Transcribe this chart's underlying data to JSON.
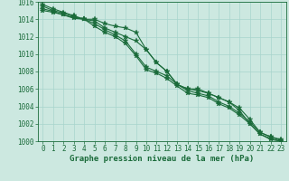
{
  "xlabel": "Graphe pression niveau de la mer (hPa)",
  "xlim": [
    -0.5,
    23.5
  ],
  "ylim": [
    1000,
    1016
  ],
  "yticks": [
    1000,
    1002,
    1004,
    1006,
    1008,
    1010,
    1012,
    1014,
    1016
  ],
  "xticks": [
    0,
    1,
    2,
    3,
    4,
    5,
    6,
    7,
    8,
    9,
    10,
    11,
    12,
    13,
    14,
    15,
    16,
    17,
    18,
    19,
    20,
    21,
    22,
    23
  ],
  "background_color": "#cce8e0",
  "grid_color": "#a8d4cc",
  "line_color": "#1a6b3a",
  "spine_color": "#1a6b3a",
  "lines": [
    [
      1015.0,
      1014.8,
      1014.5,
      1014.2,
      1014.0,
      1014.0,
      1013.5,
      1013.2,
      1013.0,
      1012.5,
      1010.5,
      1009.0,
      1008.0,
      1006.5,
      1006.0,
      1006.0,
      1005.5,
      1005.0,
      1004.5,
      1003.8,
      1002.5,
      1001.0,
      1000.5,
      1000.2
    ],
    [
      1015.2,
      1014.9,
      1014.5,
      1014.1,
      1014.0,
      1013.8,
      1013.0,
      1012.5,
      1012.0,
      1011.5,
      1010.5,
      1009.0,
      1008.0,
      1006.5,
      1006.0,
      1005.8,
      1005.5,
      1005.0,
      1004.5,
      1003.5,
      1002.0,
      1000.8,
      1000.2,
      1000.0
    ],
    [
      1015.5,
      1015.0,
      1014.7,
      1014.3,
      1014.0,
      1013.5,
      1012.8,
      1012.2,
      1011.5,
      1010.0,
      1008.5,
      1008.0,
      1007.5,
      1006.5,
      1005.8,
      1005.5,
      1005.2,
      1004.5,
      1004.0,
      1003.2,
      1002.2,
      1001.0,
      1000.5,
      1000.1
    ],
    [
      1015.7,
      1015.2,
      1014.8,
      1014.4,
      1014.0,
      1013.2,
      1012.5,
      1012.0,
      1011.2,
      1009.8,
      1008.2,
      1007.8,
      1007.2,
      1006.3,
      1005.5,
      1005.3,
      1005.0,
      1004.3,
      1003.8,
      1003.0,
      1002.0,
      1000.8,
      1000.3,
      1000.0
    ]
  ],
  "marker": "*",
  "markersize": 4,
  "linewidth": 0.8,
  "tick_fontsize": 5.5,
  "label_fontsize": 6.5,
  "label_fontweight": "bold"
}
